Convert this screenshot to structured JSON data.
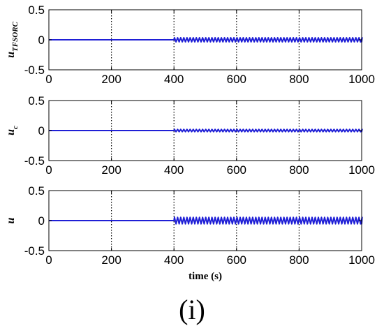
{
  "panel_label": "(i)",
  "colors": {
    "signal": "#1f1fd6",
    "axis": "#000000",
    "grid": "#000000"
  },
  "chart_data": [
    {
      "type": "line",
      "ylabel": "u",
      "ylabel_sub": "TFSORC",
      "xlabel": "",
      "xlim": [
        0,
        1000
      ],
      "ylim": [
        -0.5,
        0.5
      ],
      "xticks": [
        "0",
        "200",
        "400",
        "600",
        "800",
        "1000"
      ],
      "yticks": [
        "0.5",
        "0",
        "-0.5"
      ],
      "grid": "vertical dotted",
      "series": [
        {
          "baseline": 0,
          "flat_until": 400,
          "oscillation_period": 10,
          "oscillation_amplitude": 0.035
        }
      ]
    },
    {
      "type": "line",
      "ylabel": "u",
      "ylabel_sub": "c",
      "xlabel": "",
      "xlim": [
        0,
        1000
      ],
      "ylim": [
        -0.5,
        0.5
      ],
      "xticks": [
        "0",
        "200",
        "400",
        "600",
        "800",
        "1000"
      ],
      "yticks": [
        "0.5",
        "0",
        "-0.5"
      ],
      "grid": "vertical dotted",
      "series": [
        {
          "baseline": 0,
          "flat_until": 400,
          "oscillation_period": 10,
          "oscillation_amplitude": 0.02
        }
      ]
    },
    {
      "type": "line",
      "ylabel": "u",
      "ylabel_sub": "",
      "xlabel": "time (s)",
      "xlim": [
        0,
        1000
      ],
      "ylim": [
        -0.5,
        0.5
      ],
      "xticks": [
        "0",
        "200",
        "400",
        "600",
        "800",
        "1000"
      ],
      "yticks": [
        "0.5",
        "0",
        "-0.5"
      ],
      "grid": "vertical dotted",
      "series": [
        {
          "baseline": 0,
          "flat_until": 400,
          "oscillation_period": 10,
          "oscillation_amplitude": 0.055
        }
      ]
    }
  ]
}
